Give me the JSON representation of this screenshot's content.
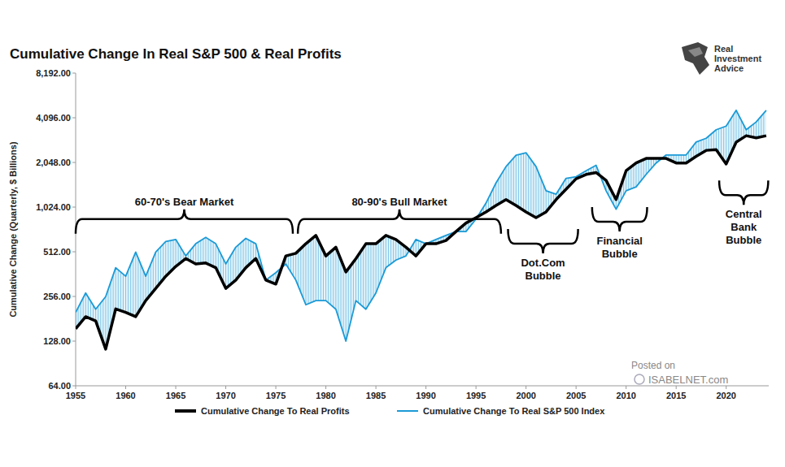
{
  "chart_data": {
    "type": "line",
    "title": "Cumulative Change In Real S&P 500 & Real Profits",
    "y_label": "Cumulative Change (Quarterly, $ Billions)",
    "x": [
      1955,
      1956,
      1957,
      1958,
      1959,
      1960,
      1961,
      1962,
      1963,
      1964,
      1965,
      1966,
      1967,
      1968,
      1969,
      1970,
      1971,
      1972,
      1973,
      1974,
      1975,
      1976,
      1977,
      1978,
      1979,
      1980,
      1981,
      1982,
      1983,
      1984,
      1985,
      1986,
      1987,
      1988,
      1989,
      1990,
      1991,
      1992,
      1993,
      1994,
      1995,
      1996,
      1997,
      1998,
      1999,
      2000,
      2001,
      2002,
      2003,
      2004,
      2005,
      2006,
      2007,
      2008,
      2009,
      2010,
      2011,
      2012,
      2013,
      2014,
      2015,
      2016,
      2017,
      2018,
      2019,
      2020,
      2021,
      2022,
      2023,
      2024
    ],
    "series": [
      {
        "name": "Cumulative Change To Real Profits",
        "color": "#000000",
        "values": [
          155,
          187,
          175,
          113,
          211,
          200,
          187,
          240,
          290,
          350,
          408,
          461,
          424,
          430,
          400,
          290,
          330,
          400,
          461,
          330,
          310,
          480,
          500,
          580,
          660,
          480,
          550,
          374,
          460,
          580,
          580,
          660,
          620,
          550,
          480,
          580,
          580,
          610,
          700,
          800,
          870,
          950,
          1050,
          1150,
          1050,
          950,
          870,
          950,
          1150,
          1350,
          1590,
          1700,
          1750,
          1550,
          1150,
          1800,
          2030,
          2180,
          2180,
          2180,
          2030,
          2030,
          2250,
          2470,
          2500,
          2000,
          2810,
          3100,
          3000,
          3100
        ]
      },
      {
        "name": "Cumulative Change To Real S&P 500 Index",
        "color": "#1b9ad6",
        "values": [
          200,
          270,
          210,
          255,
          400,
          350,
          510,
          350,
          510,
          600,
          620,
          480,
          580,
          640,
          580,
          424,
          550,
          630,
          580,
          330,
          370,
          424,
          330,
          225,
          240,
          240,
          210,
          128,
          240,
          210,
          270,
          400,
          450,
          480,
          620,
          580,
          620,
          660,
          700,
          700,
          850,
          1090,
          1490,
          1920,
          2290,
          2380,
          1920,
          1320,
          1250,
          1600,
          1640,
          1800,
          1960,
          1320,
          990,
          1320,
          1400,
          1700,
          2030,
          2300,
          2300,
          2300,
          2810,
          2980,
          3400,
          3600,
          4600,
          3400,
          3840,
          4600
        ]
      }
    ],
    "xlim": [
      1955,
      2024.25
    ],
    "ylim": [
      64,
      8192
    ],
    "xticks": [
      1955,
      1960,
      1965,
      1970,
      1975,
      1980,
      1985,
      1990,
      1995,
      2000,
      2005,
      2010,
      2015,
      2020
    ],
    "yticks": [
      {
        "value": 64,
        "label": "64.00"
      },
      {
        "value": 128,
        "label": "128.00"
      },
      {
        "value": 256,
        "label": "256.00"
      },
      {
        "value": 512,
        "label": "512.00"
      },
      {
        "value": 1024,
        "label": "1,024.00"
      },
      {
        "value": 2048,
        "label": "2,048.00"
      },
      {
        "value": 4096,
        "label": "4,096.00"
      },
      {
        "value": 8192,
        "label": "8,192.00"
      }
    ],
    "log": "y",
    "grid": false,
    "legend": "bottom",
    "annotations": [
      {
        "text": [
          "60-70's Bear Market"
        ],
        "x": [
          1955,
          1976.7
        ],
        "y": 850
      },
      {
        "text": [
          "80-90's Bull Market"
        ],
        "x": [
          1977.2,
          1997.5
        ],
        "y": 850
      },
      {
        "text": [
          "Dot.Com",
          "Bubble"
        ],
        "x": [
          1998.2,
          2005.2
        ],
        "y": 580
      },
      {
        "text": [
          "Financial",
          "Bubble"
        ],
        "x": [
          2006.6,
          2012.1
        ],
        "y": 817
      },
      {
        "text": [
          "Central",
          "Bank",
          "Bubble"
        ],
        "x": [
          2019.3,
          2024.2
        ],
        "y": 1235
      }
    ]
  },
  "logo": [
    "Real",
    "Investment",
    "Advice"
  ],
  "watermark": [
    "Posted on",
    "ISABELNET.com"
  ]
}
